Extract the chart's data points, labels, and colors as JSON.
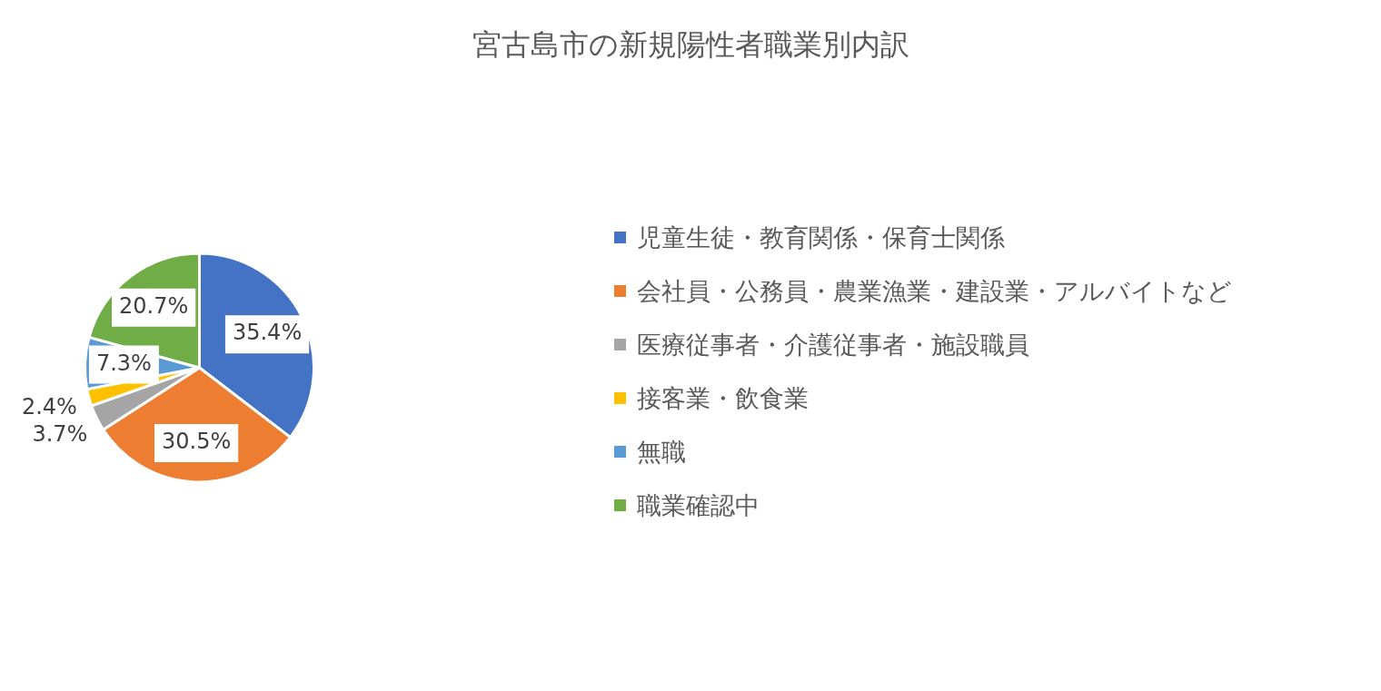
{
  "chart_data": {
    "type": "pie",
    "title": "宮古島市の新規陽性者職業別内訳",
    "categories": [
      "児童生徒・教育関係・保育士関係",
      "会社員・公務員・農業漁業・建設業・アルバイトなど",
      "医療従事者・介護従事者・施設職員",
      "接客業・飲食業",
      "無職",
      "職業確認中"
    ],
    "values": [
      35.4,
      30.5,
      3.7,
      2.4,
      7.3,
      20.7
    ],
    "value_labels": [
      "35.4%",
      "30.5%",
      "3.7%",
      "2.4%",
      "7.3%",
      "20.7%"
    ],
    "colors": [
      "#4472c4",
      "#ed7d31",
      "#a5a5a5",
      "#ffc000",
      "#5b9bd5",
      "#70ad47"
    ],
    "legend": "right"
  }
}
